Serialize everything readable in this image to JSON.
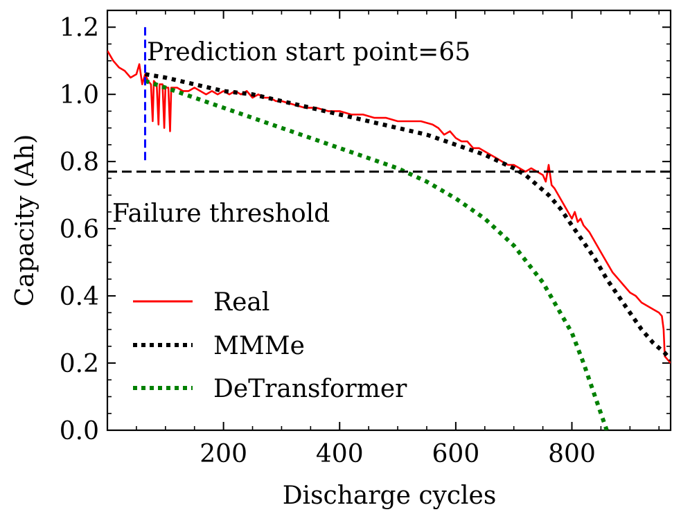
{
  "chart_data": {
    "type": "line",
    "xlabel": "Discharge cycles",
    "ylabel": "Capacity (Ah)",
    "xlim": [
      0,
      970
    ],
    "ylim": [
      0,
      1.25
    ],
    "xticks": [
      200,
      400,
      600,
      800
    ],
    "xtick_labels": [
      "200",
      "400",
      "600",
      "800"
    ],
    "yticks": [
      0.0,
      0.2,
      0.4,
      0.6,
      0.8,
      1.0,
      1.2
    ],
    "ytick_labels": [
      "0.0",
      "0.2",
      "0.4",
      "0.6",
      "0.8",
      "1.0",
      "1.2"
    ],
    "grid": false,
    "legend_position": "lower-left",
    "annotations": {
      "prediction_start": {
        "text": "Prediction start point=65",
        "x": 65,
        "y_range": [
          0.8,
          1.2
        ],
        "color": "#0000ff"
      },
      "failure_threshold": {
        "text": "Failure threshold",
        "y": 0.77,
        "color": "#000000"
      }
    },
    "series": [
      {
        "name": "Real",
        "color": "#ff0000",
        "style": "solid",
        "x": [
          0,
          10,
          20,
          30,
          40,
          50,
          55,
          60,
          65,
          70,
          75,
          78,
          80,
          85,
          88,
          90,
          95,
          98,
          100,
          105,
          108,
          110,
          120,
          130,
          140,
          150,
          160,
          170,
          180,
          190,
          200,
          210,
          220,
          230,
          240,
          250,
          260,
          270,
          280,
          290,
          300,
          320,
          340,
          360,
          380,
          400,
          420,
          440,
          460,
          480,
          500,
          520,
          540,
          560,
          570,
          580,
          590,
          600,
          610,
          620,
          630,
          640,
          650,
          660,
          670,
          680,
          690,
          700,
          710,
          720,
          730,
          740,
          750,
          755,
          760,
          765,
          770,
          780,
          790,
          800,
          805,
          810,
          815,
          820,
          830,
          840,
          850,
          860,
          870,
          880,
          890,
          900,
          910,
          920,
          930,
          940,
          950,
          955,
          958,
          960,
          965,
          970
        ],
        "y": [
          1.13,
          1.1,
          1.08,
          1.07,
          1.05,
          1.06,
          1.09,
          1.03,
          1.06,
          1.04,
          1.03,
          0.92,
          1.04,
          1.03,
          0.91,
          1.03,
          1.03,
          0.9,
          1.02,
          1.02,
          0.89,
          1.02,
          1.02,
          1.01,
          1.01,
          1.02,
          1.01,
          1.0,
          1.01,
          1.0,
          1.01,
          1.0,
          1.01,
          1.0,
          1.01,
          0.99,
          1.0,
          0.99,
          0.99,
          0.98,
          0.98,
          0.97,
          0.96,
          0.96,
          0.95,
          0.95,
          0.94,
          0.94,
          0.93,
          0.93,
          0.92,
          0.92,
          0.92,
          0.91,
          0.9,
          0.88,
          0.89,
          0.87,
          0.86,
          0.86,
          0.84,
          0.84,
          0.83,
          0.82,
          0.81,
          0.8,
          0.79,
          0.79,
          0.78,
          0.77,
          0.78,
          0.77,
          0.76,
          0.74,
          0.79,
          0.73,
          0.72,
          0.69,
          0.66,
          0.63,
          0.65,
          0.62,
          0.63,
          0.61,
          0.59,
          0.56,
          0.53,
          0.5,
          0.47,
          0.45,
          0.43,
          0.41,
          0.4,
          0.38,
          0.37,
          0.36,
          0.35,
          0.34,
          0.3,
          0.22,
          0.21,
          0.2
        ]
      },
      {
        "name": "MMMe",
        "color": "#000000",
        "style": "dotted",
        "x": [
          65,
          100,
          150,
          200,
          250,
          300,
          350,
          400,
          450,
          500,
          550,
          600,
          650,
          700,
          720,
          740,
          760,
          780,
          800,
          820,
          840,
          860,
          880,
          900,
          920,
          940,
          960,
          970
        ],
        "y": [
          1.06,
          1.05,
          1.03,
          1.01,
          1.0,
          0.98,
          0.96,
          0.94,
          0.92,
          0.9,
          0.88,
          0.85,
          0.82,
          0.78,
          0.76,
          0.73,
          0.7,
          0.66,
          0.61,
          0.56,
          0.51,
          0.45,
          0.4,
          0.35,
          0.3,
          0.26,
          0.23,
          0.21
        ]
      },
      {
        "name": "DeTransformer",
        "color": "#008000",
        "style": "dotted",
        "x": [
          65,
          100,
          150,
          200,
          250,
          300,
          350,
          400,
          450,
          500,
          550,
          600,
          650,
          700,
          750,
          800,
          820,
          840,
          860
        ],
        "y": [
          1.04,
          1.02,
          0.99,
          0.96,
          0.93,
          0.9,
          0.87,
          0.84,
          0.81,
          0.78,
          0.74,
          0.69,
          0.63,
          0.55,
          0.44,
          0.29,
          0.2,
          0.1,
          0.0
        ]
      }
    ]
  }
}
